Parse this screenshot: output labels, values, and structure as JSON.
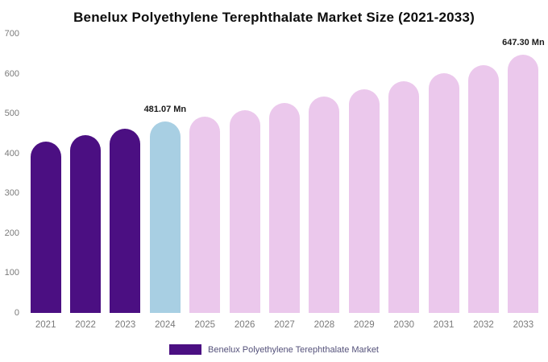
{
  "chart_data": {
    "type": "bar",
    "title": "Benelux Polyethylene Terephthalate Market Size (2021-2033)",
    "categories": [
      "2021",
      "2022",
      "2023",
      "2024",
      "2025",
      "2026",
      "2027",
      "2028",
      "2029",
      "2030",
      "2031",
      "2032",
      "2033"
    ],
    "values": [
      430,
      445,
      462,
      481.07,
      493,
      508,
      526,
      543,
      561,
      580,
      601,
      622,
      647.3
    ],
    "unit": "Mn",
    "ylim": [
      0,
      700
    ],
    "ytick_step": 100,
    "grid": false,
    "bar_colors": [
      "#4b0f82",
      "#4b0f82",
      "#4b0f82",
      "#a8cfe3",
      "#ebc8ec",
      "#ebc8ec",
      "#ebc8ec",
      "#ebc8ec",
      "#ebc8ec",
      "#ebc8ec",
      "#ebc8ec",
      "#ebc8ec",
      "#ebc8ec"
    ],
    "color_roles": {
      "historical": "#4b0f82",
      "highlight_current_year": "#a8cfe3",
      "forecast": "#ebc8ec"
    },
    "annotations": [
      {
        "index": 3,
        "text": "481.07 Mn"
      },
      {
        "index": 12,
        "text": "647.30 Mn"
      }
    ],
    "legend": {
      "label": "Benelux Polyethylene Terephthalate Market",
      "position": "bottom",
      "swatch_color": "#4b0f82"
    },
    "axis_text_color": "#7a7a7a"
  }
}
